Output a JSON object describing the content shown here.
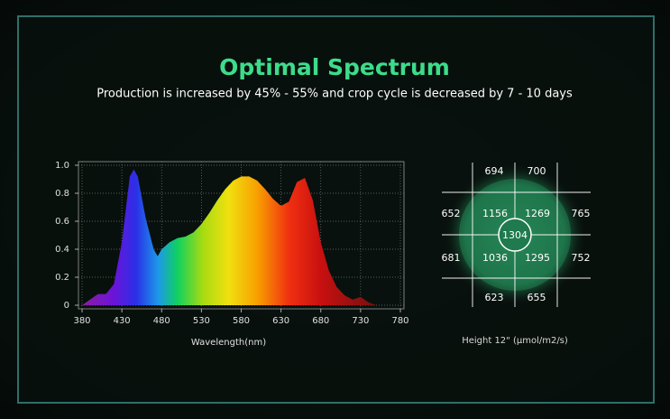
{
  "header": {
    "title": "Optimal Spectrum",
    "subtitle": "Production is increased by 45% - 55% and crop cycle is decreased by 7 - 10 days"
  },
  "chart_data": {
    "type": "area",
    "xlabel": "Wavelength(nm)",
    "x": [
      380,
      390,
      400,
      410,
      420,
      430,
      440,
      445,
      450,
      460,
      470,
      475,
      480,
      490,
      500,
      510,
      520,
      530,
      540,
      550,
      560,
      570,
      580,
      590,
      600,
      610,
      620,
      630,
      640,
      650,
      660,
      670,
      680,
      690,
      700,
      710,
      720,
      730,
      740,
      750
    ],
    "values": [
      0,
      0.04,
      0.08,
      0.08,
      0.15,
      0.45,
      0.92,
      0.97,
      0.92,
      0.62,
      0.4,
      0.35,
      0.4,
      0.45,
      0.48,
      0.49,
      0.52,
      0.58,
      0.66,
      0.75,
      0.83,
      0.89,
      0.92,
      0.92,
      0.89,
      0.83,
      0.76,
      0.71,
      0.74,
      0.88,
      0.91,
      0.75,
      0.45,
      0.25,
      0.13,
      0.07,
      0.04,
      0.06,
      0.02,
      0
    ],
    "xlim": [
      380,
      780
    ],
    "ylim": [
      0,
      1
    ],
    "xticks": [
      380,
      430,
      480,
      530,
      580,
      630,
      680,
      730,
      780
    ],
    "yticks": [
      0,
      0.2,
      0.4,
      0.6,
      0.8,
      {
        "value": 1,
        "label": "1.0"
      }
    ],
    "grid": true
  },
  "ppfd": {
    "values": [
      694,
      700,
      652,
      1156,
      1269,
      765,
      1304,
      681,
      1036,
      1295,
      752,
      623,
      655
    ],
    "caption": "Height 12\" (μmol/m2/s)"
  }
}
